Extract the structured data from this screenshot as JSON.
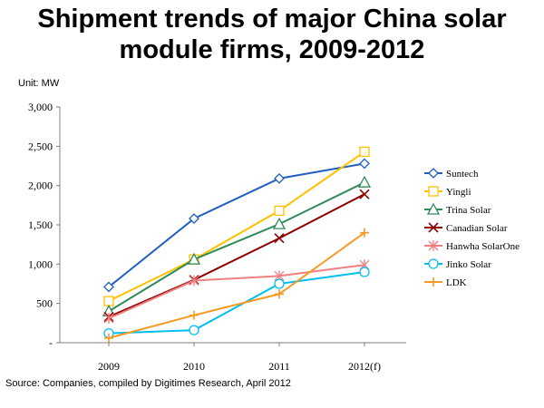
{
  "title_line1": "Shipment trends of major China solar",
  "title_line2": "module firms, 2009-2012",
  "unit_label": "Unit: MW",
  "source": "Source: Companies, compiled by Digitimes Research, April 2012",
  "chart_data": {
    "type": "line",
    "title": "Shipment trends of major China solar module firms, 2009-2012",
    "ylabel": "Unit: MW",
    "x": [
      "2009",
      "2010",
      "2011",
      "2012(f)"
    ],
    "ylim": [
      0,
      3000
    ],
    "yticks": [
      0,
      500,
      1000,
      1500,
      2000,
      2500,
      3000
    ],
    "ytick_labels": [
      "-",
      "500",
      "1,000",
      "1,500",
      "2,000",
      "2,500",
      "3,000"
    ],
    "grid": false,
    "legend_position": "right",
    "series": [
      {
        "name": "Suntech",
        "values": [
          710,
          1580,
          2090,
          2280
        ],
        "color": "#1f5fbf",
        "marker": "diamond"
      },
      {
        "name": "Yingli",
        "values": [
          530,
          1060,
          1680,
          2430
        ],
        "color": "#ffc000",
        "marker": "square"
      },
      {
        "name": "Trina Solar",
        "values": [
          400,
          1060,
          1510,
          2040
        ],
        "color": "#2e8b57",
        "marker": "triangle"
      },
      {
        "name": "Canadian Solar",
        "values": [
          330,
          800,
          1330,
          1890
        ],
        "color": "#8b0000",
        "marker": "x"
      },
      {
        "name": "Hanwha SolarOne",
        "values": [
          310,
          790,
          850,
          990
        ],
        "color": "#f08080",
        "marker": "star"
      },
      {
        "name": "Jinko Solar",
        "values": [
          120,
          160,
          750,
          900
        ],
        "color": "#00bfef",
        "marker": "circle"
      },
      {
        "name": "LDK",
        "values": [
          60,
          350,
          620,
          1400
        ],
        "color": "#f59a23",
        "marker": "plus"
      }
    ]
  }
}
